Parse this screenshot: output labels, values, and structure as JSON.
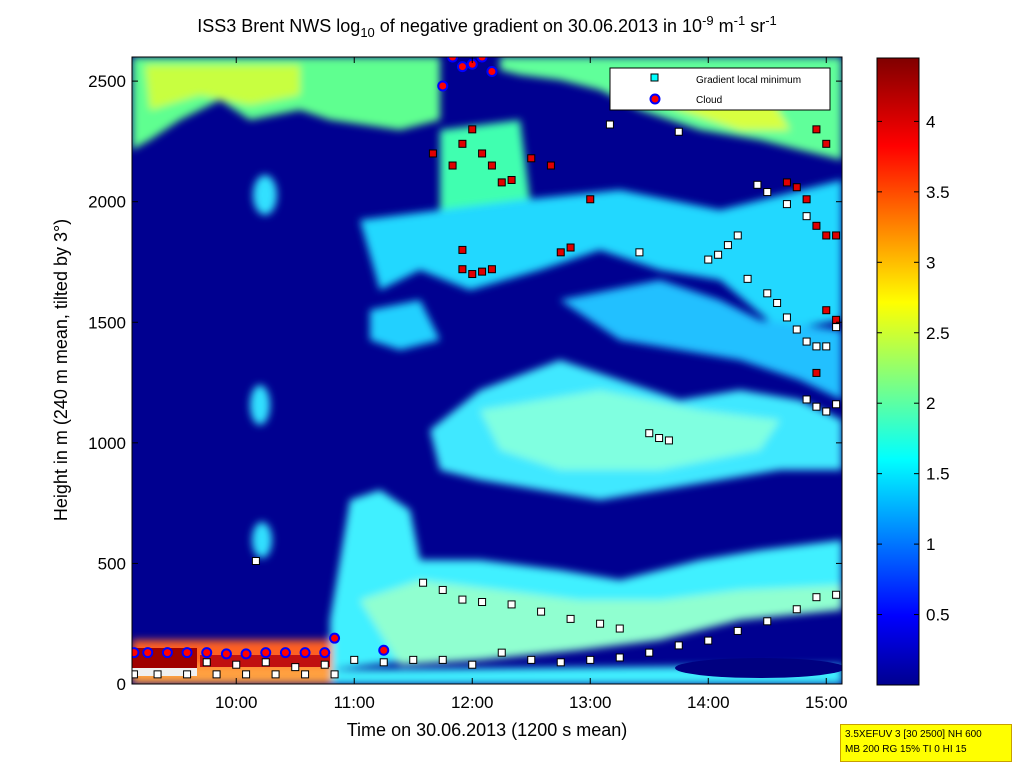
{
  "chart_data": {
    "type": "heatmap",
    "title": {
      "prefix": "ISS3 Brent NWS log",
      "sub": "10",
      "mid": " of negative gradient on 30.06.2013 in 10",
      "sup1": "-9",
      "unit1": " m",
      "sup2": "-1",
      "unit2": " sr",
      "sup3": "-1"
    },
    "xlabel": "Time on 30.06.2013 (1200 s mean)",
    "ylabel": "Height in m (240 m mean, tilted by 3°)",
    "xlim": [
      "09:07",
      "15:08"
    ],
    "ylim": [
      0,
      2600
    ],
    "x_ticks": [
      "10:00",
      "11:00",
      "12:00",
      "13:00",
      "14:00",
      "15:00"
    ],
    "y_ticks": [
      "0",
      "500",
      "1000",
      "1500",
      "2000",
      "2500"
    ],
    "colorbar": {
      "range": [
        0,
        4.45
      ],
      "ticks": [
        "0.5",
        "1",
        "1.5",
        "2",
        "2.5",
        "3",
        "3.5",
        "4"
      ],
      "colormap": "jet"
    },
    "legend": {
      "placement": "top-right",
      "entries": [
        {
          "label": "Gradient local minimum",
          "marker": "square",
          "color": "#00ffff"
        },
        {
          "label": "Cloud",
          "marker": "circle",
          "color": "#ff0000",
          "edge": "#0000ff"
        }
      ]
    },
    "series": [
      {
        "label_ref": "Gradient local minimum",
        "points": [
          [
            "09:08",
            40
          ],
          [
            "09:20",
            40
          ],
          [
            "09:35",
            40
          ],
          [
            "09:50",
            40
          ],
          [
            "10:05",
            40
          ],
          [
            "10:20",
            40
          ],
          [
            "10:35",
            40
          ],
          [
            "10:50",
            40
          ],
          [
            "09:45",
            90
          ],
          [
            "10:00",
            80
          ],
          [
            "10:15",
            90
          ],
          [
            "10:30",
            70
          ],
          [
            "10:45",
            80
          ],
          [
            "11:00",
            100
          ],
          [
            "11:15",
            90
          ],
          [
            "11:30",
            100
          ],
          [
            "11:45",
            100
          ],
          [
            "12:00",
            80
          ],
          [
            "12:15",
            130
          ],
          [
            "12:30",
            100
          ],
          [
            "12:45",
            90
          ],
          [
            "13:00",
            100
          ],
          [
            "13:15",
            110
          ],
          [
            "13:30",
            130
          ],
          [
            "13:45",
            160
          ],
          [
            "14:00",
            180
          ],
          [
            "14:15",
            220
          ],
          [
            "14:30",
            260
          ],
          [
            "14:45",
            310
          ],
          [
            "14:55",
            360
          ],
          [
            "15:05",
            370
          ],
          [
            "11:35",
            420
          ],
          [
            "11:45",
            390
          ],
          [
            "11:55",
            350
          ],
          [
            "12:05",
            340
          ],
          [
            "12:20",
            330
          ],
          [
            "12:35",
            300
          ],
          [
            "12:50",
            270
          ],
          [
            "13:05",
            250
          ],
          [
            "13:15",
            230
          ],
          [
            "13:30",
            1040
          ],
          [
            "13:35",
            1020
          ],
          [
            "13:40",
            1010
          ],
          [
            "13:25",
            1790
          ],
          [
            "14:00",
            1760
          ],
          [
            "14:05",
            1780
          ],
          [
            "14:10",
            1820
          ],
          [
            "14:15",
            1860
          ],
          [
            "14:20",
            1680
          ],
          [
            "14:30",
            1620
          ],
          [
            "14:35",
            1580
          ],
          [
            "14:40",
            1520
          ],
          [
            "14:45",
            1470
          ],
          [
            "14:50",
            1420
          ],
          [
            "14:55",
            1400
          ],
          [
            "15:00",
            1400
          ],
          [
            "15:05",
            1480
          ],
          [
            "14:50",
            1180
          ],
          [
            "14:55",
            1150
          ],
          [
            "15:00",
            1130
          ],
          [
            "15:05",
            1160
          ],
          [
            "13:45",
            2290
          ],
          [
            "14:25",
            2070
          ],
          [
            "14:30",
            2040
          ],
          [
            "14:40",
            1990
          ],
          [
            "14:50",
            1940
          ],
          [
            "13:10",
            2320
          ],
          [
            "09:05",
            520
          ],
          [
            "10:10",
            510
          ]
        ]
      },
      {
        "label_ref": "Cloud",
        "points": [
          [
            "09:08",
            130
          ],
          [
            "09:15",
            130
          ],
          [
            "09:25",
            130
          ],
          [
            "09:35",
            130
          ],
          [
            "09:45",
            130
          ],
          [
            "09:55",
            125
          ],
          [
            "10:05",
            125
          ],
          [
            "10:15",
            130
          ],
          [
            "10:25",
            130
          ],
          [
            "10:35",
            130
          ],
          [
            "10:45",
            130
          ],
          [
            "10:50",
            190
          ],
          [
            "11:15",
            140
          ],
          [
            "11:50",
            2600
          ],
          [
            "11:55",
            2560
          ],
          [
            "12:00",
            2570
          ],
          [
            "12:05",
            2600
          ],
          [
            "12:10",
            2540
          ],
          [
            "11:45",
            2480
          ]
        ]
      },
      {
        "label_ref": "Red squares",
        "points": [
          [
            "11:40",
            2200
          ],
          [
            "11:50",
            2150
          ],
          [
            "11:55",
            2240
          ],
          [
            "12:00",
            2300
          ],
          [
            "12:05",
            2200
          ],
          [
            "12:10",
            2150
          ],
          [
            "12:15",
            2080
          ],
          [
            "12:20",
            2090
          ],
          [
            "12:30",
            2180
          ],
          [
            "12:40",
            2150
          ],
          [
            "13:00",
            2010
          ],
          [
            "11:55",
            1800
          ],
          [
            "11:55",
            1720
          ],
          [
            "12:00",
            1700
          ],
          [
            "12:05",
            1710
          ],
          [
            "12:10",
            1720
          ],
          [
            "12:45",
            1790
          ],
          [
            "12:50",
            1810
          ],
          [
            "14:40",
            2080
          ],
          [
            "14:45",
            2060
          ],
          [
            "14:50",
            2010
          ],
          [
            "14:55",
            1900
          ],
          [
            "15:00",
            1860
          ],
          [
            "15:05",
            1860
          ],
          [
            "14:55",
            2300
          ],
          [
            "15:00",
            2240
          ],
          [
            "15:05",
            1510
          ],
          [
            "15:00",
            1550
          ],
          [
            "14:55",
            1290
          ]
        ]
      }
    ]
  },
  "infobox": {
    "line1": "3.5XEFUV 3 [30 2500] NH 600",
    "line2": "MB 200 RG 15% TI 0 HI 15"
  },
  "colors": {
    "background": "#000080",
    "min_marker_fill": "#00ffff",
    "cloud_fill": "#ff0000",
    "cloud_edge": "#0000ff",
    "red_marker": "#e00000"
  }
}
